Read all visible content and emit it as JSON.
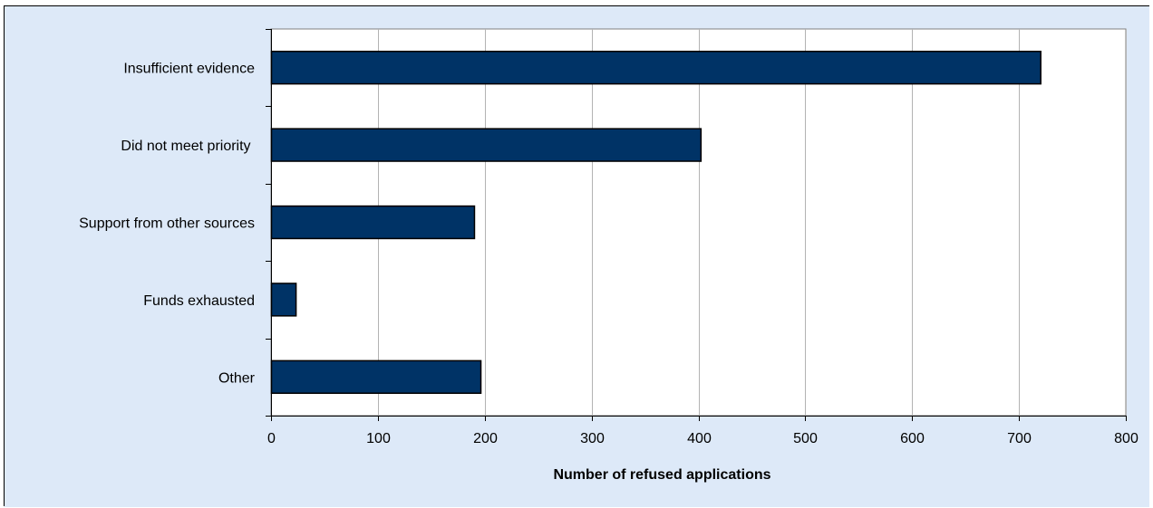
{
  "chart_data": {
    "type": "bar",
    "orientation": "horizontal",
    "categories": [
      "Insufficient evidence",
      "Did not meet priority ",
      "Support from other sources",
      "Funds exhausted",
      "Other"
    ],
    "values": [
      720,
      402,
      190,
      23,
      196
    ],
    "title": "",
    "xlabel": "Number of refused applications",
    "ylabel": "",
    "xlim": [
      0,
      800
    ],
    "xticks": [
      0,
      100,
      200,
      300,
      400,
      500,
      600,
      700,
      800
    ],
    "grid": "vertical",
    "legend": "none",
    "colors": {
      "bar_fill": "#003366",
      "bar_edge": "#000000",
      "outer_background": "#dde9f8",
      "plot_background": "#ffffff",
      "grid": "#b3b3b3"
    }
  }
}
